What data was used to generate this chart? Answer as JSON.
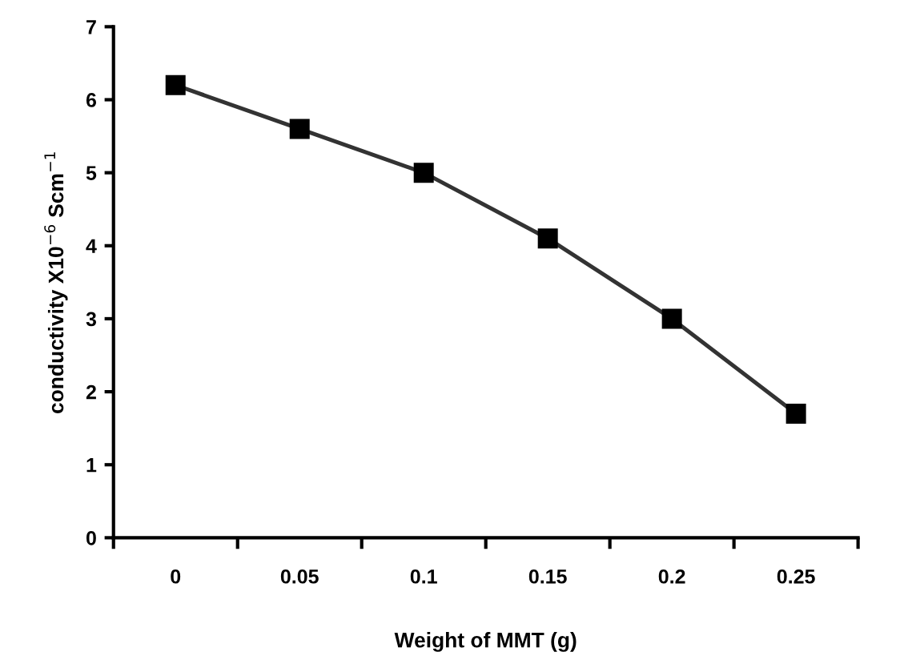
{
  "chart_data": {
    "type": "line",
    "xlabel": "Weight of MMT (g)",
    "ylabel": "conductivity X10$^{−6}$ Scm$^{−1}$",
    "categories": [
      "0",
      "0.05",
      "0.1",
      "0.15",
      "0.2",
      "0.25"
    ],
    "series": [
      {
        "color": "#000000",
        "values": [
          6.2,
          5.6,
          5.0,
          4.1,
          3.0,
          1.7
        ]
      }
    ],
    "ylim": [
      0,
      7
    ],
    "yticks": [
      0,
      1,
      2,
      3,
      4,
      5,
      6,
      7
    ],
    "marker": "square",
    "line_style": "solid",
    "grid": false,
    "legend": false
  }
}
